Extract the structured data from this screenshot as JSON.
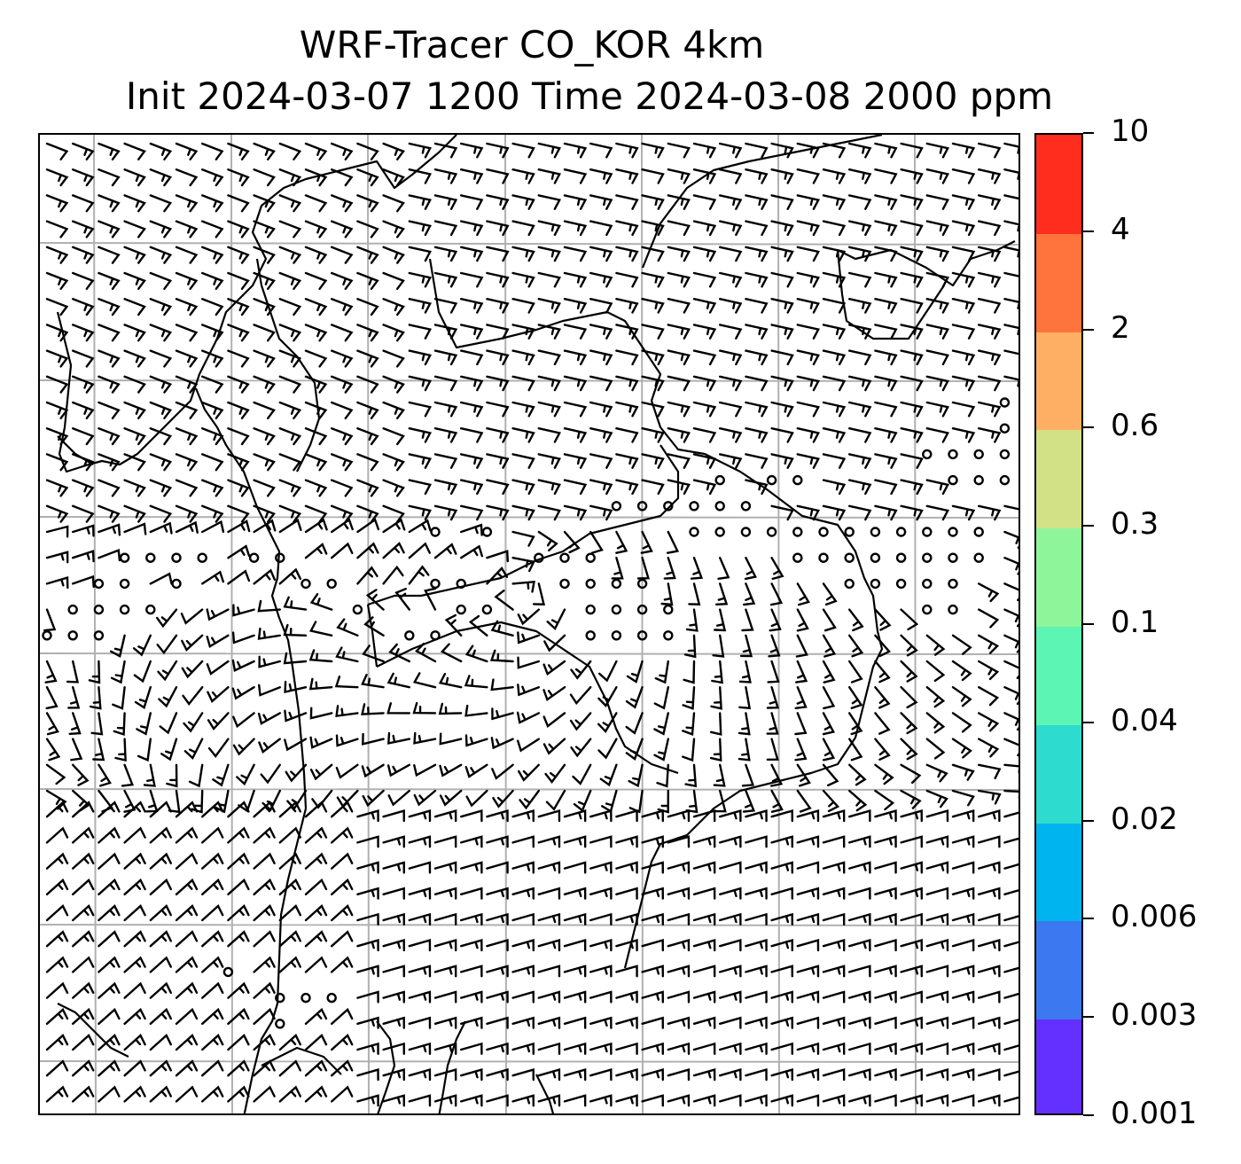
{
  "title": {
    "line1": "WRF-Tracer CO_KOR 4km",
    "line2": "Init 2024-03-07 1200 Time 2024-03-08 2000 ppm"
  },
  "map": {
    "grid_color": "#b0b0b0",
    "coastline_color": "#000000",
    "wind_barb_color": "#000000",
    "calm_marker": "open circle (calm wind)"
  },
  "colorbar": {
    "levels": [
      "0.001",
      "0.003",
      "0.006",
      "0.02",
      "0.04",
      "0.1",
      "0.3",
      "0.6",
      "2",
      "4",
      "10"
    ],
    "colors": [
      "#6430ff",
      "#3c78f0",
      "#00b4ef",
      "#2ddccf",
      "#5cf5b4",
      "#8ff59a",
      "#d2e186",
      "#ffaf64",
      "#ff733c",
      "#ff2d1e"
    ]
  }
}
